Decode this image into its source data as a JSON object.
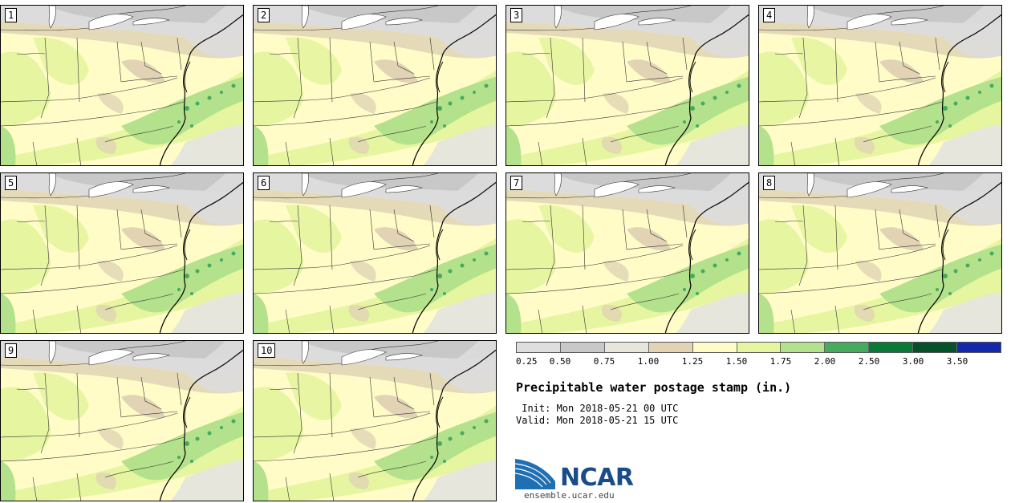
{
  "title": "Precipitable water postage stamp (in.)",
  "init_line": " Init: Mon 2018-05-21 00 UTC",
  "valid_line": "Valid: Mon 2018-05-21 15 UTC",
  "panels": [
    "1",
    "2",
    "3",
    "4",
    "5",
    "6",
    "7",
    "8",
    "9",
    "10"
  ],
  "colorbar": {
    "colors": [
      "#dedede",
      "#c8c8c8",
      "#e6e6dc",
      "#e1d3b4",
      "#fffcc8",
      "#e6f5a0",
      "#b4e18c",
      "#46aa5f",
      "#0a7837",
      "#06502a",
      "#1428aa"
    ],
    "ticks": [
      "0.25",
      "0.50",
      "0.75",
      "1.00",
      "1.25",
      "1.50",
      "1.75",
      "2.00",
      "2.50",
      "3.00",
      "3.50"
    ]
  },
  "logo": {
    "name": "NCAR",
    "website": "ensemble.ucar.edu"
  }
}
